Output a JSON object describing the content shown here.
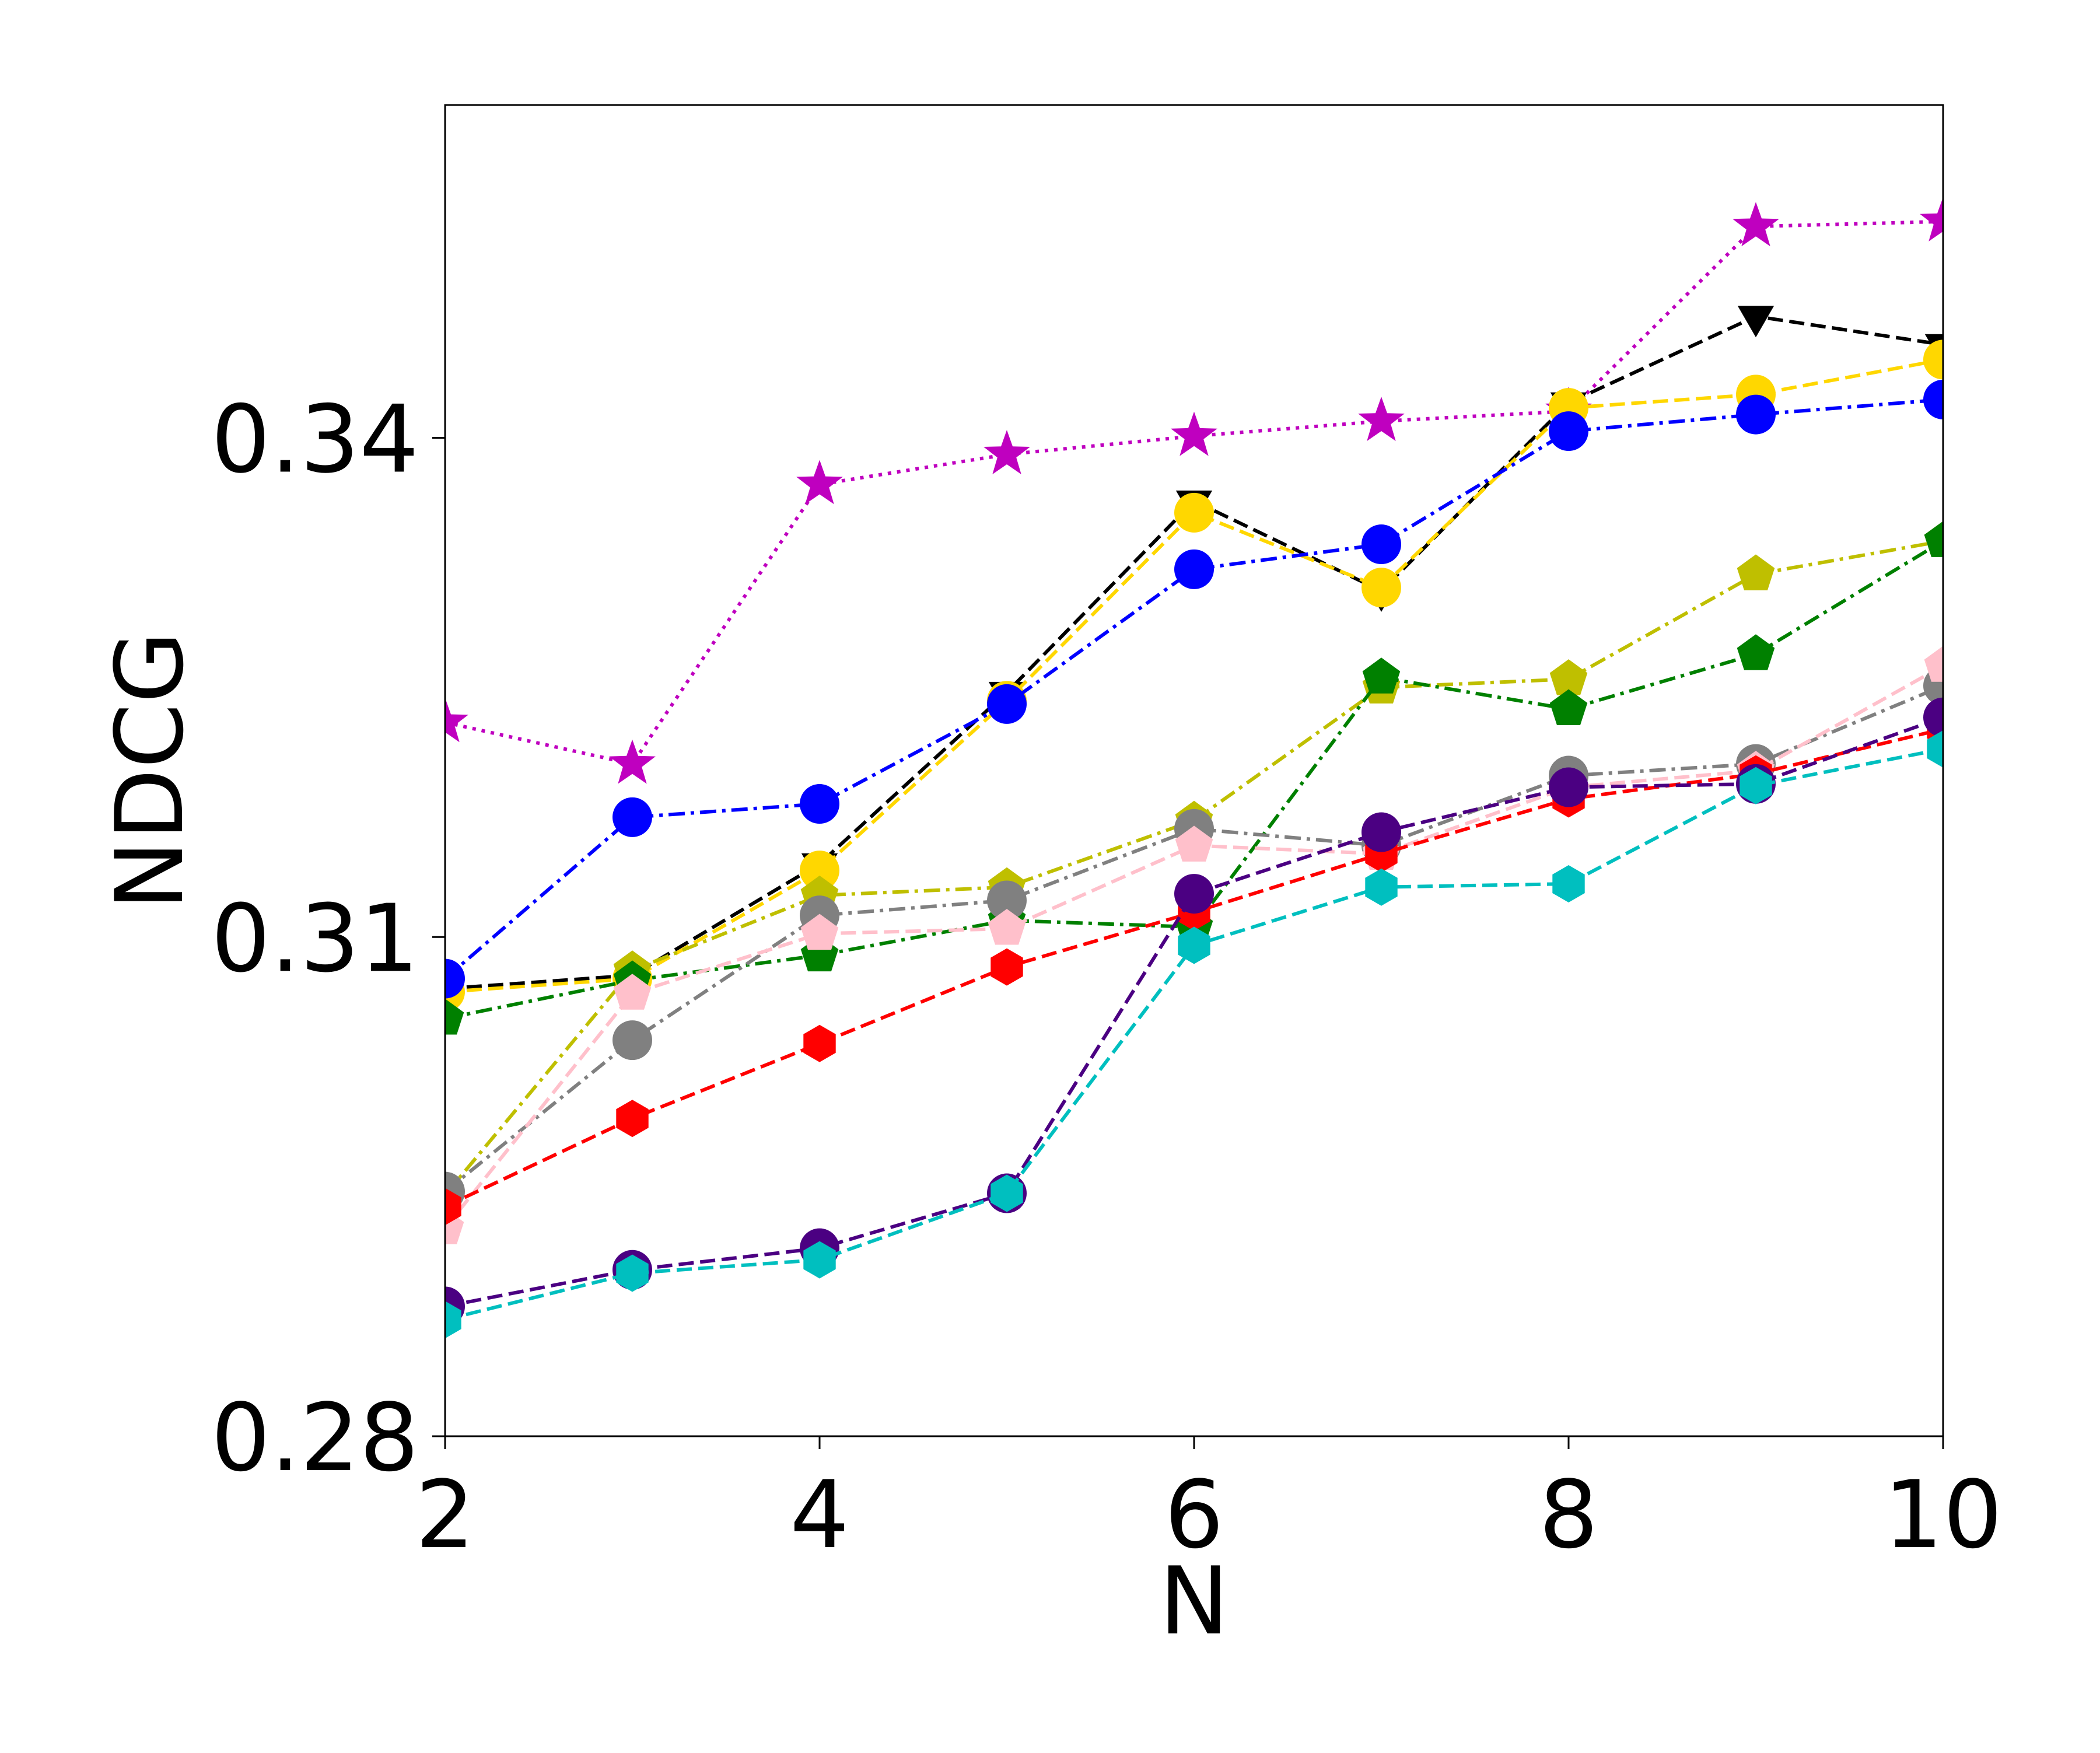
{
  "chart_data": {
    "type": "line",
    "title": "",
    "xlabel": "N",
    "ylabel": "NDCG",
    "x": [
      2,
      3,
      4,
      5,
      6,
      7,
      8,
      9,
      10
    ],
    "xlim": [
      2,
      10
    ],
    "ylim": [
      0.28,
      0.36
    ],
    "xticks": [
      2,
      4,
      6,
      8,
      10
    ],
    "yticks": [
      0.28,
      0.31,
      0.34
    ],
    "xtick_labels": [
      "2",
      "4",
      "6",
      "8",
      "10"
    ],
    "ytick_labels": [
      "0.28",
      "0.31",
      "0.34"
    ],
    "grid": false,
    "legend": "none",
    "series": [
      {
        "color": "#bf00bf",
        "linestyle": "dotted",
        "marker": "star",
        "values": [
          0.3229,
          0.3204,
          0.3372,
          0.339,
          0.3401,
          0.341,
          0.3416,
          0.3527,
          0.353
        ]
      },
      {
        "color": "#000000",
        "linestyle": "dashed",
        "marker": "triangle-down",
        "values": [
          0.3069,
          0.3077,
          0.3144,
          0.3247,
          0.3362,
          0.3308,
          0.3421,
          0.3473,
          0.3456
        ]
      },
      {
        "color": "#ffd700",
        "linestyle": "dashed",
        "marker": "circle",
        "values": [
          0.3067,
          0.3075,
          0.314,
          0.3242,
          0.3355,
          0.331,
          0.3418,
          0.3426,
          0.3447
        ]
      },
      {
        "color": "#0000ff",
        "linestyle": "dashdot",
        "marker": "circle",
        "values": [
          0.3075,
          0.3172,
          0.318,
          0.324,
          0.3321,
          0.3336,
          0.3404,
          0.3414,
          0.3423
        ]
      },
      {
        "color": "#bfbf00",
        "linestyle": "dashdot",
        "marker": "pentagon",
        "values": [
          0.2945,
          0.308,
          0.3125,
          0.313,
          0.317,
          0.325,
          0.3255,
          0.3318,
          0.3338
        ]
      },
      {
        "color": "#008000",
        "linestyle": "dashdot",
        "marker": "pentagon",
        "values": [
          0.3051,
          0.3074,
          0.3089,
          0.311,
          0.3106,
          0.3256,
          0.3237,
          0.327,
          0.3338
        ]
      },
      {
        "color": "#808080",
        "linestyle": "dashdot",
        "marker": "circle",
        "values": [
          0.2947,
          0.3038,
          0.3113,
          0.3122,
          0.3165,
          0.3155,
          0.3197,
          0.3204,
          0.3251
        ]
      },
      {
        "color": "#ffc0cb",
        "linestyle": "dashed",
        "marker": "pentagon",
        "values": [
          0.2925,
          0.3066,
          0.3102,
          0.3105,
          0.3155,
          0.315,
          0.319,
          0.32,
          0.3263
        ]
      },
      {
        "color": "#ff0000",
        "linestyle": "dashed",
        "marker": "hexagon",
        "values": [
          0.2938,
          0.2991,
          0.3036,
          0.3082,
          0.3115,
          0.315,
          0.3183,
          0.3198,
          0.3225
        ]
      },
      {
        "color": "#4b0082",
        "linestyle": "dashed",
        "marker": "circle",
        "values": [
          0.2878,
          0.29,
          0.2913,
          0.2946,
          0.3126,
          0.3163,
          0.319,
          0.3192,
          0.3232
        ]
      },
      {
        "color": "#00bfbf",
        "linestyle": "dashed",
        "marker": "hexagon",
        "values": [
          0.287,
          0.2898,
          0.2906,
          0.2946,
          0.3095,
          0.313,
          0.3132,
          0.3191,
          0.3213
        ]
      }
    ]
  }
}
